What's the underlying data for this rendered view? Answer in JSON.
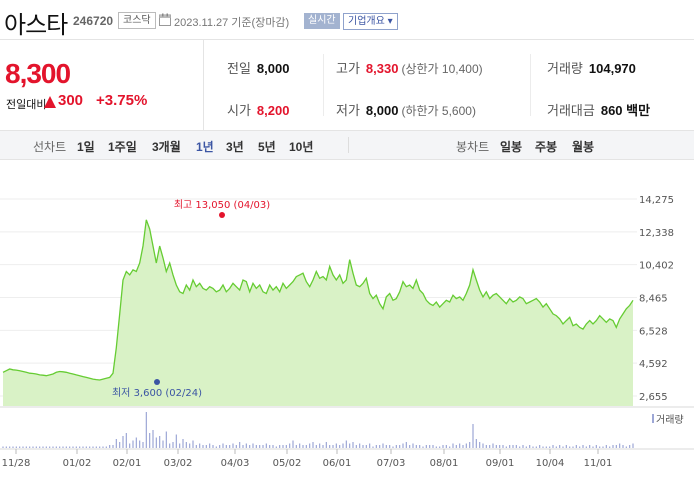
{
  "header": {
    "name": "아스타",
    "code": "246720",
    "market": "코스닥",
    "date": "2023.11.27 기준(장마감)",
    "realtime": "실시간",
    "company_info": "기업개요 ▾"
  },
  "price": {
    "current": "8,300",
    "change_label": "전일대비",
    "change": "300",
    "rate": "+3.75%"
  },
  "stats": {
    "prev_close_label": "전일",
    "prev_close": "8,000",
    "high_label": "고가",
    "high": "8,330",
    "upper_limit": "(상한가 10,400)",
    "volume_label": "거래량",
    "volume": "104,970",
    "open_label": "시가",
    "open": "8,200",
    "low_label": "저가",
    "low": "8,000",
    "lower_limit": "(하한가 5,600)",
    "amount_label": "거래대금",
    "amount": "860 백만"
  },
  "tabs": {
    "line_label": "선차트",
    "periods": [
      "1일",
      "1주일",
      "3개월",
      "1년",
      "3년",
      "5년",
      "10년"
    ],
    "selected": "1년",
    "candle_label": "봉차트",
    "candles": [
      "일봉",
      "주봉",
      "월봉"
    ]
  },
  "chart_data": {
    "type": "area",
    "x_ticks": [
      "11/28",
      "01/02",
      "02/01",
      "03/02",
      "04/03",
      "05/02",
      "06/01",
      "07/03",
      "08/01",
      "09/01",
      "10/04",
      "11/01"
    ],
    "y_ticks": [
      "14,275",
      "12,338",
      "10,402",
      "8,465",
      "6,528",
      "4,592",
      "2,655"
    ],
    "ylim": [
      2655,
      14275
    ],
    "high_label": "최고 13,050 (04/03)",
    "low_label": "최저 3,600 (02/24)",
    "volume_label": "거래량",
    "colors": {
      "line": "#66cc33",
      "fill": "#d9f2c6",
      "high": "#e3142c",
      "low": "#3b55a3",
      "volume": "#9da7d6"
    },
    "values": [
      4050,
      4150,
      4250,
      4200,
      4180,
      4150,
      4100,
      4050,
      4000,
      3980,
      3950,
      3900,
      3880,
      3850,
      3900,
      3950,
      4050,
      4100,
      4080,
      4050,
      4000,
      3950,
      3900,
      3850,
      3800,
      3750,
      3700,
      3650,
      3620,
      3600,
      3650,
      3700,
      3750,
      4000,
      5500,
      7500,
      9500,
      10000,
      9800,
      10100,
      10000,
      10500,
      11500,
      13050,
      12500,
      11500,
      10500,
      11500,
      10800,
      10000,
      10500,
      9800,
      9200,
      8800,
      8700,
      9200,
      8900,
      9500,
      9100,
      9300,
      9000,
      8900,
      9100,
      9000,
      8800,
      8900,
      9200,
      8800,
      9000,
      9300,
      9100,
      8900,
      9500,
      9400,
      8800,
      9300,
      9000,
      9200,
      8800,
      8700,
      9200,
      8900,
      9100,
      8800,
      9300,
      9000,
      9200,
      9400,
      9700,
      9800,
      9900,
      9400,
      9100,
      9500,
      10000,
      9600,
      9700,
      9500,
      10300,
      9800,
      9500,
      9800,
      9300,
      9500,
      10700,
      9900,
      9200,
      9100,
      9300,
      9600,
      8700,
      8400,
      8600,
      8100,
      7800,
      8500,
      8700,
      8300,
      8400,
      8800,
      9400,
      9100,
      9200,
      9000,
      9500,
      8900,
      8700,
      8300,
      8100,
      8000,
      8200,
      7900,
      8100,
      8300,
      8200,
      8600,
      8400,
      8500,
      8300,
      8700,
      9200,
      10100,
      9500,
      8900,
      8500,
      8800,
      8400,
      8600,
      8700,
      8500,
      8300,
      8100,
      8400,
      8200,
      8300,
      8500,
      8400,
      8100,
      8200,
      8300,
      8400,
      8200,
      7900,
      8100,
      7800,
      7500,
      7400,
      7200,
      6900,
      7100,
      7300,
      6800,
      6900,
      6700,
      6600,
      6900,
      7100,
      6900,
      7100,
      7400,
      7200,
      7000,
      7200,
      7100,
      6700,
      7200,
      7500,
      7800,
      8000,
      8300
    ],
    "volume": [
      1,
      1,
      1,
      1,
      1,
      1,
      1,
      1,
      1,
      1,
      1,
      1,
      1,
      1,
      1,
      1,
      1,
      1,
      1,
      1,
      1,
      1,
      1,
      1,
      1,
      1,
      1,
      1,
      1,
      1,
      1,
      1,
      2,
      2,
      6,
      4,
      8,
      10,
      3,
      5,
      7,
      5,
      4,
      24,
      10,
      12,
      7,
      8,
      5,
      11,
      3,
      4,
      9,
      3,
      6,
      4,
      3,
      5,
      2,
      3,
      2,
      2,
      3,
      2,
      1,
      2,
      3,
      2,
      2,
      3,
      2,
      4,
      2,
      3,
      2,
      3,
      2,
      2,
      2,
      3,
      2,
      2,
      1,
      2,
      2,
      2,
      3,
      5,
      2,
      3,
      2,
      2,
      3,
      4,
      2,
      3,
      2,
      4,
      2,
      2,
      3,
      2,
      3,
      5,
      3,
      4,
      2,
      3,
      2,
      2,
      3,
      1,
      2,
      2,
      3,
      2,
      2,
      1,
      2,
      2,
      3,
      4,
      2,
      3,
      2,
      2,
      1,
      2,
      2,
      2,
      1,
      1,
      2,
      2,
      1,
      3,
      2,
      3,
      2,
      3,
      4,
      16,
      6,
      4,
      3,
      2,
      2,
      3,
      2,
      2,
      2,
      1,
      2,
      2,
      2,
      1,
      2,
      1,
      2,
      1,
      1,
      2,
      1,
      1,
      1,
      2,
      1,
      2,
      1,
      2,
      1,
      1,
      2,
      1,
      2,
      1,
      2,
      1,
      2,
      1,
      1,
      2,
      1,
      2,
      2,
      3,
      2,
      1,
      2,
      3
    ]
  }
}
